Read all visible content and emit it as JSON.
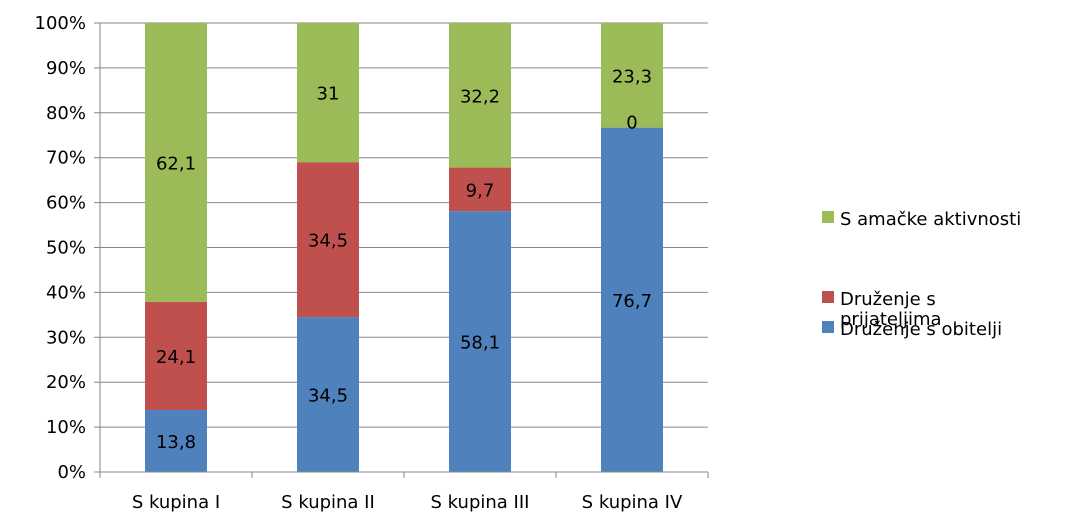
{
  "chart_data": {
    "type": "bar",
    "stacked": true,
    "percent_stacked": true,
    "categories": [
      "S kupina I",
      "S kupina II",
      "S kupina III",
      "S kupina IV"
    ],
    "series": [
      {
        "name": "Druženje s obitelji",
        "values": [
          13.8,
          34.5,
          58.1,
          76.7
        ],
        "color": "#4F81BD"
      },
      {
        "name": "Druženje s prijateljima",
        "values": [
          24.1,
          34.5,
          9.7,
          0
        ],
        "color": "#C0504D"
      },
      {
        "name": "S amačke aktivnosti",
        "values": [
          62.1,
          31,
          32.2,
          23.3
        ],
        "color": "#9BBB59"
      }
    ],
    "data_labels": [
      [
        "13,8",
        "34,5",
        "58,1",
        "76,7"
      ],
      [
        "24,1",
        "34,5",
        "9,7",
        "0"
      ],
      [
        "62,1",
        "31",
        "32,2",
        "23,3"
      ]
    ],
    "y_ticks": [
      "0%",
      "10%",
      "20%",
      "30%",
      "40%",
      "50%",
      "60%",
      "70%",
      "80%",
      "90%",
      "100%"
    ],
    "ylim": [
      0,
      100
    ],
    "grid": true,
    "legend_position": "right",
    "legend_entries": [
      {
        "text": "S amačke aktivnosti",
        "color": "#9BBB59"
      },
      {
        "text": "Druženje s prijateljima",
        "color": "#C0504D"
      },
      {
        "text": "Druženje s obitelji",
        "color": "#4F81BD"
      }
    ],
    "legend_label_lines": [
      [
        "S amačke aktivnosti"
      ],
      [
        "Druženje s",
        "prijateljima"
      ],
      [
        "Druženje s obitelji"
      ]
    ]
  }
}
